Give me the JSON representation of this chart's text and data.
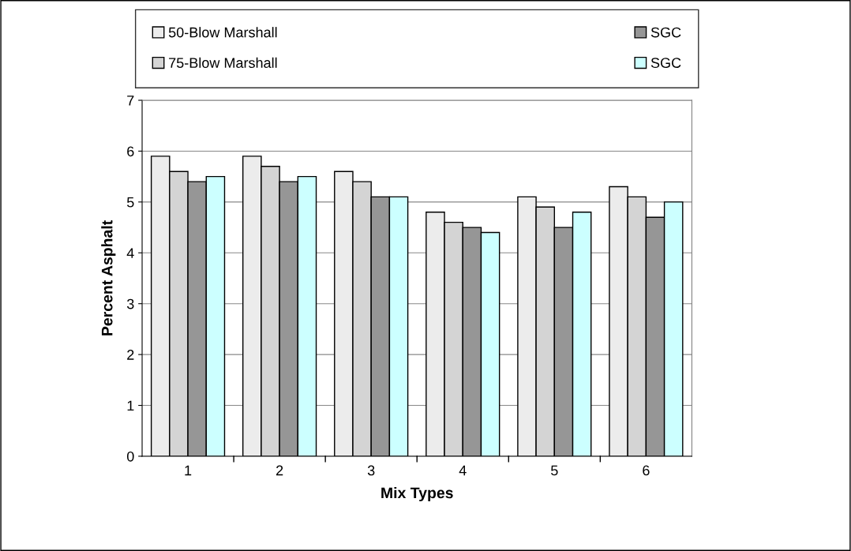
{
  "chart_data": {
    "type": "bar",
    "xlabel": "Mix Types",
    "ylabel": "Percent Asphalt",
    "categories": [
      "1",
      "2",
      "3",
      "4",
      "5",
      "6"
    ],
    "series": [
      {
        "name": "50-Blow Marshall",
        "color": "#ececec",
        "values": [
          5.9,
          5.9,
          5.6,
          4.8,
          5.1,
          5.3
        ]
      },
      {
        "name": "75-Blow Marshall",
        "color": "#d4d4d4",
        "values": [
          5.6,
          5.7,
          5.4,
          4.6,
          4.9,
          5.1
        ]
      },
      {
        "name": "SGC",
        "color": "#969696",
        "values": [
          5.4,
          5.4,
          5.1,
          4.5,
          4.5,
          4.7
        ]
      },
      {
        "name": "SGC",
        "color": "#ccffff",
        "values": [
          5.5,
          5.5,
          5.1,
          4.4,
          4.8,
          5.0
        ]
      }
    ],
    "ylim": [
      0,
      7
    ],
    "yticks": [
      0,
      1,
      2,
      3,
      4,
      5,
      6,
      7
    ],
    "grid": "y",
    "legend": "top"
  }
}
